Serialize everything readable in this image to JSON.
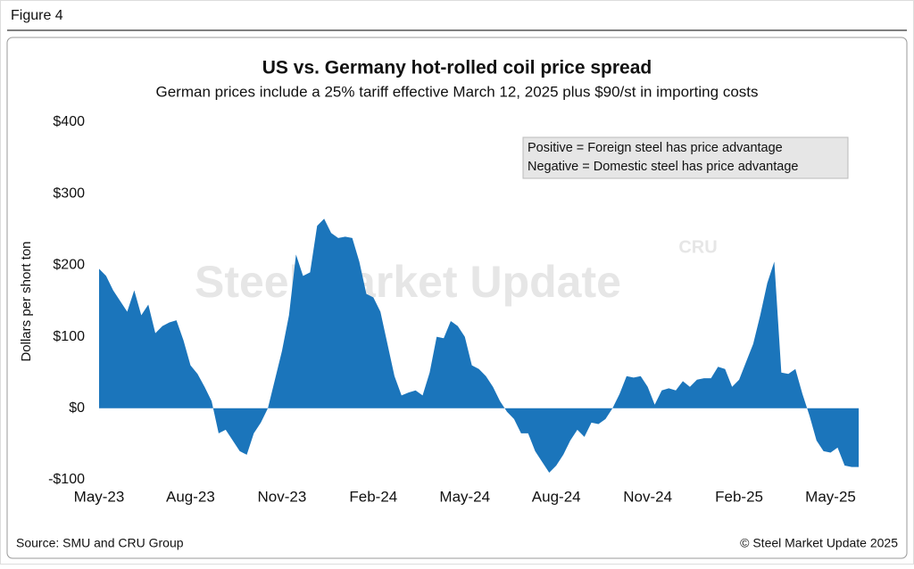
{
  "figure_label": "Figure 4",
  "chart_data": {
    "type": "area",
    "title": "US vs. Germany hot-rolled coil price spread",
    "subtitle": "German prices include a 25% tariff effective March 12, 2025 plus $90/st in importing costs",
    "y_label": "Dollars per short ton",
    "annotations": [
      "Positive = Foreign steel has price advantage",
      "Negative = Domestic steel has price advantage"
    ],
    "watermark": "Steel Market Update",
    "watermark_logo": "CRU",
    "source": "Source: SMU and CRU Group",
    "copyright": "© Steel Market Update 2025",
    "categories": [
      "May-23",
      null,
      null,
      null,
      null,
      null,
      null,
      null,
      null,
      null,
      null,
      null,
      null,
      "Aug-23",
      null,
      null,
      null,
      null,
      null,
      null,
      null,
      null,
      null,
      null,
      null,
      null,
      "Nov-23",
      null,
      null,
      null,
      null,
      null,
      null,
      null,
      null,
      null,
      null,
      null,
      null,
      "Feb-24",
      null,
      null,
      null,
      null,
      null,
      null,
      null,
      null,
      null,
      null,
      null,
      null,
      "May-24",
      null,
      null,
      null,
      null,
      null,
      null,
      null,
      null,
      null,
      null,
      null,
      null,
      "Aug-24",
      null,
      null,
      null,
      null,
      null,
      null,
      null,
      null,
      null,
      null,
      null,
      null,
      "Nov-24",
      null,
      null,
      null,
      null,
      null,
      null,
      null,
      null,
      null,
      null,
      null,
      null,
      "Feb-25",
      null,
      null,
      null,
      null,
      null,
      null,
      null,
      null,
      null,
      null,
      null,
      null,
      "May-25",
      null,
      null,
      null,
      null
    ],
    "series": [
      {
        "name": "Price spread",
        "color": "#1b75bb",
        "values": [
          195,
          185,
          165,
          150,
          135,
          165,
          130,
          145,
          105,
          115,
          120,
          123,
          95,
          60,
          48,
          30,
          10,
          -35,
          -30,
          -45,
          -60,
          -65,
          -35,
          -20,
          0,
          40,
          80,
          130,
          215,
          185,
          190,
          255,
          265,
          245,
          238,
          240,
          238,
          205,
          160,
          155,
          135,
          90,
          45,
          18,
          22,
          25,
          18,
          50,
          100,
          98,
          122,
          115,
          100,
          60,
          55,
          45,
          30,
          10,
          -5,
          -15,
          -35,
          -35,
          -60,
          -75,
          -90,
          -80,
          -65,
          -45,
          -30,
          -40,
          -20,
          -22,
          -15,
          0,
          20,
          45,
          43,
          45,
          30,
          5,
          25,
          28,
          25,
          38,
          30,
          40,
          42,
          42,
          58,
          55,
          30,
          40,
          65,
          90,
          130,
          175,
          205,
          50,
          48,
          55,
          20,
          -10,
          -45,
          -60,
          -62,
          -55,
          -80,
          -82,
          -82
        ]
      }
    ],
    "ylim": [
      -100,
      400
    ],
    "yticks": [
      {
        "value": -100,
        "label": "-$100"
      },
      {
        "value": 0,
        "label": "$0"
      },
      {
        "value": 100,
        "label": "$100"
      },
      {
        "value": 200,
        "label": "$200"
      },
      {
        "value": 300,
        "label": "$300"
      },
      {
        "value": 400,
        "label": "$400"
      }
    ],
    "grid": false
  }
}
